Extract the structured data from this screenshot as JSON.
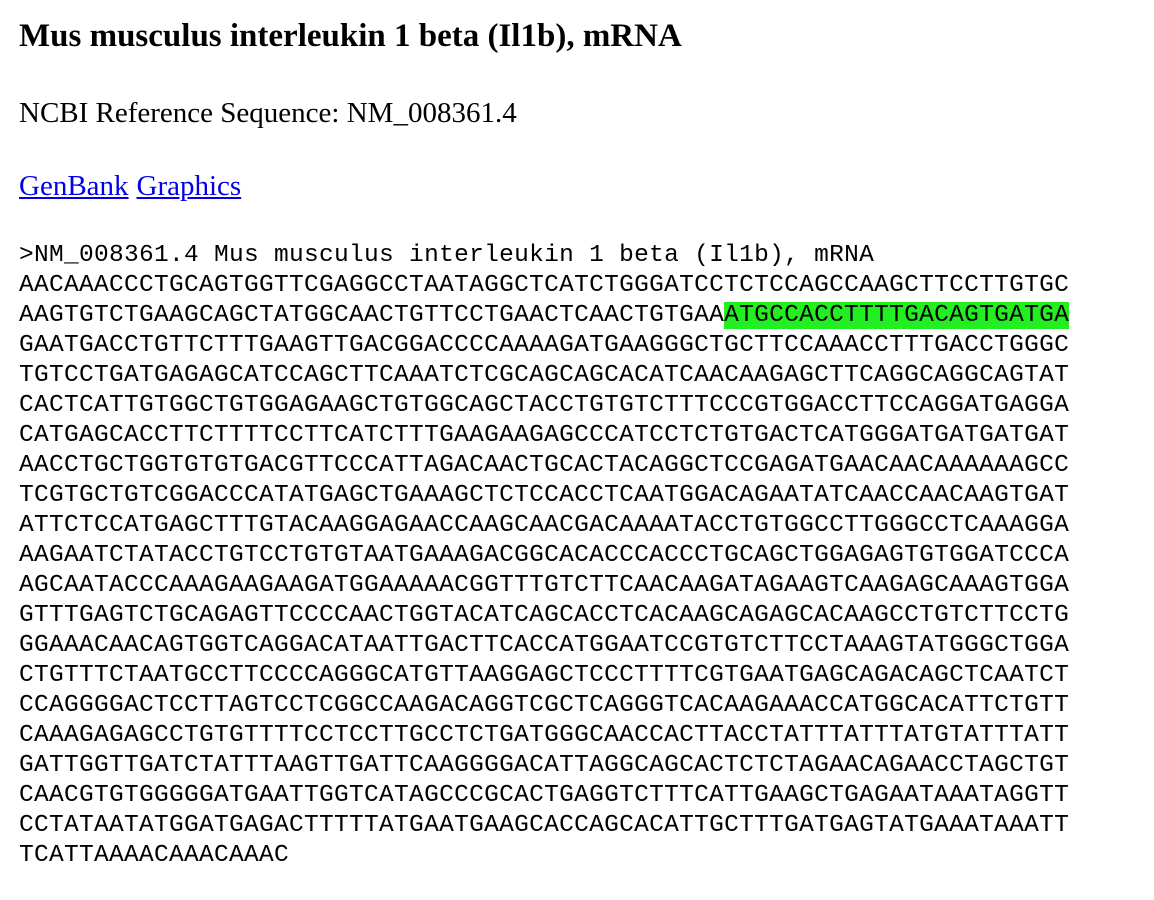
{
  "title": "Mus musculus interleukin 1 beta (Il1b), mRNA",
  "reference": "NCBI Reference Sequence: NM_008361.4",
  "links": {
    "genbank": "GenBank",
    "graphics": "Graphics"
  },
  "fasta": {
    "header": ">NM_008361.4 Mus musculus interleukin 1 beta (Il1b), mRNA",
    "highlight_color": "#22ee22",
    "lines": [
      {
        "pre": "AACAAACCCTGCAGTGGTTCGAGGCCTAATAGGCTCATCTGGGATCCTCTCCAGCCAAGCTTCCTTGTGC",
        "hl": "",
        "post": ""
      },
      {
        "pre": "AAGTGTCTGAAGCAGCTATGGCAACTGTTCCTGAACTCAACTGTGAA",
        "hl": "ATGCCACCTTTTGACAGTGATGA",
        "post": ""
      },
      {
        "pre": "GAATGACCTGTTCTTTGAAGTTGACGGACCCCAAAAGATGAAGGGCTGCTTCCAAACCTTTGACCTGGGC",
        "hl": "",
        "post": ""
      },
      {
        "pre": "TGTCCTGATGAGAGCATCCAGCTTCAAATCTCGCAGCAGCACATCAACAAGAGCTTCAGGCAGGCAGTAT",
        "hl": "",
        "post": ""
      },
      {
        "pre": "CACTCATTGTGGCTGTGGAGAAGCTGTGGCAGCTACCTGTGTCTTTCCCGTGGACCTTCCAGGATGAGGA",
        "hl": "",
        "post": ""
      },
      {
        "pre": "CATGAGCACCTTCTTTTCCTTCATCTTTGAAGAAGAGCCCATCCTCTGTGACTCATGGGATGATGATGAT",
        "hl": "",
        "post": ""
      },
      {
        "pre": "AACCTGCTGGTGTGTGACGTTCCCATTAGACAACTGCACTACAGGCTCCGAGATGAACAACAAAAAAGCC",
        "hl": "",
        "post": ""
      },
      {
        "pre": "TCGTGCTGTCGGACCCATATGAGCTGAAAGCTCTCCACCTCAATGGACAGAATATCAACCAACAAGTGAT",
        "hl": "",
        "post": ""
      },
      {
        "pre": "ATTCTCCATGAGCTTTGTACAAGGAGAACCAAGCAACGACAAAATACCTGTGGCCTTGGGCCTCAAAGGA",
        "hl": "",
        "post": ""
      },
      {
        "pre": "AAGAATCTATACCTGTCCTGTGTAATGAAAGACGGCACACCCACCCTGCAGCTGGAGAGTGTGGATCCCA",
        "hl": "",
        "post": ""
      },
      {
        "pre": "AGCAATACCCAAAGAAGAAGATGGAAAAACGGTTTGTCTTCAACAAGATAGAAGTCAAGAGCAAAGTGGA",
        "hl": "",
        "post": ""
      },
      {
        "pre": "GTTTGAGTCTGCAGAGTTCCCCAACTGGTACATCAGCACCTCACAAGCAGAGCACAAGCCTGTCTTCCTG",
        "hl": "",
        "post": ""
      },
      {
        "pre": "GGAAACAACAGTGGTCAGGACATAATTGACTTCACCATGGAATCCGTGTCTTCCTAAAGTATGGGCTGGA",
        "hl": "",
        "post": ""
      },
      {
        "pre": "CTGTTTCTAATGCCTTCCCCAGGGCATGTTAAGGAGCTCCCTTTTCGTGAATGAGCAGACAGCTCAATCT",
        "hl": "",
        "post": ""
      },
      {
        "pre": "CCAGGGGACTCCTTAGTCCTCGGCCAAGACAGGTCGCTCAGGGTCACAAGAAACCATGGCACATTCTGTT",
        "hl": "",
        "post": ""
      },
      {
        "pre": "CAAAGAGAGCCTGTGTTTTCCTCCTTGCCTCTGATGGGCAACCACTTACCTATTTATTTATGTATTTATT",
        "hl": "",
        "post": ""
      },
      {
        "pre": "GATTGGTTGATCTATTTAAGTTGATTCAAGGGGACATTAGGCAGCACTCTCTAGAACAGAACCTAGCTGT",
        "hl": "",
        "post": ""
      },
      {
        "pre": "CAACGTGTGGGGGATGAATTGGTCATAGCCCGCACTGAGGTCTTTCATTGAAGCTGAGAATAAATAGGTT",
        "hl": "",
        "post": ""
      },
      {
        "pre": "CCTATAATATGGATGAGACTTTTTATGAATGAAGCACCAGCACATTGCTTTGATGAGTATGAAATAAATT",
        "hl": "",
        "post": ""
      },
      {
        "pre": "TCATTAAAACAAACAAAC",
        "hl": "",
        "post": ""
      }
    ]
  }
}
